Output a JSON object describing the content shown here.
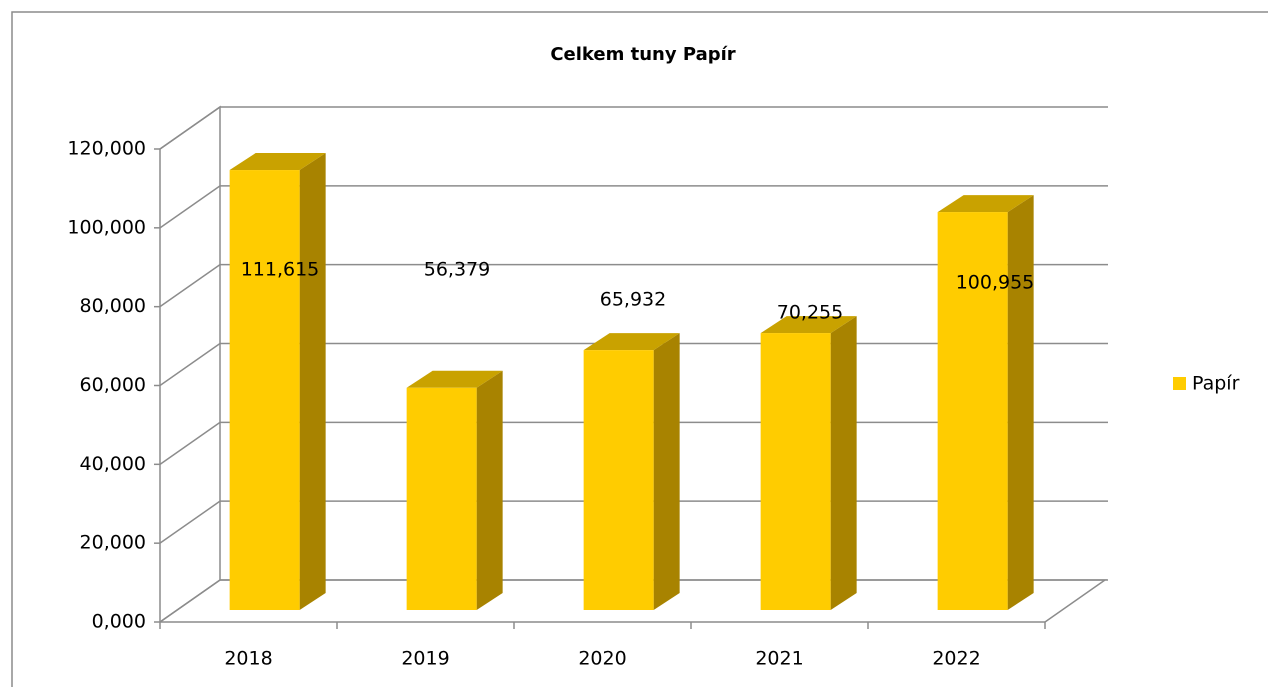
{
  "chart_data": {
    "type": "bar3d",
    "title": "Celkem tuny Papír",
    "categories": [
      "2018",
      "2019",
      "2020",
      "2021",
      "2022"
    ],
    "series": [
      {
        "name": "Papír",
        "color": "#ffcc00",
        "values": [
          111.615,
          56.379,
          65.932,
          70.255,
          100.955
        ],
        "value_labels": [
          "111,615",
          "56,379",
          "65,932",
          "70,255",
          "100,955"
        ]
      }
    ],
    "ylim": [
      0,
      120
    ],
    "yticks": [
      {
        "value": 0,
        "label": "0,000"
      },
      {
        "value": 20,
        "label": "20,000"
      },
      {
        "value": 40,
        "label": "40,000"
      },
      {
        "value": 60,
        "label": "60,000"
      },
      {
        "value": 80,
        "label": "80,000"
      },
      {
        "value": 100,
        "label": "100,000"
      },
      {
        "value": 120,
        "label": "120,000"
      }
    ],
    "grid": true,
    "legend": "right"
  }
}
